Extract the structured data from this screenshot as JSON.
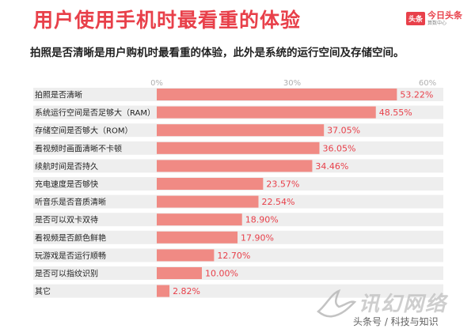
{
  "header": {
    "title": "用户使用手机时最看重的体验",
    "subtitle": "拍照是否清晰是用户购机时最看重的体验，此外是系统的运行空间及存储空间。"
  },
  "logo": {
    "badge": "头条",
    "brand": "今日头条",
    "tagline": "算数中心"
  },
  "watermark": {
    "main": "讯幻网络",
    "sub": "头条号 / 科技与知识"
  },
  "colors": {
    "title": "#e8404a",
    "bar": "#f08a84",
    "band": "#eeeeee",
    "tick": "#b0b0b0"
  },
  "chart_data": {
    "type": "bar",
    "orientation": "horizontal",
    "categories": [
      "拍照是否清晰",
      "系统运行空间是否足够大（RAM）",
      "存储空间是否够大（ROM）",
      "看视频时画面清晰不卡顿",
      "续航时间是否持久",
      "充电速度是否够快",
      "听音乐是否音质清晰",
      "是否可以双卡双待",
      "看视频是否颜色鲜艳",
      "玩游戏是否运行顺畅",
      "是否可以指纹识别",
      "其它"
    ],
    "values": [
      53.22,
      48.55,
      37.05,
      36.05,
      34.46,
      23.57,
      22.54,
      18.9,
      17.9,
      12.7,
      10.0,
      2.82
    ],
    "value_labels": [
      "53.22%",
      "48.55%",
      "37.05%",
      "36.05%",
      "34.46%",
      "23.57%",
      "22.54%",
      "18.90%",
      "17.90%",
      "12.70%",
      "10.00%",
      "2.82%"
    ],
    "xlim": [
      0,
      60
    ],
    "xticks": [
      0,
      30,
      60
    ],
    "xtick_labels": [
      "0%",
      "30%",
      "60%"
    ],
    "grid": false,
    "legend": "none"
  }
}
